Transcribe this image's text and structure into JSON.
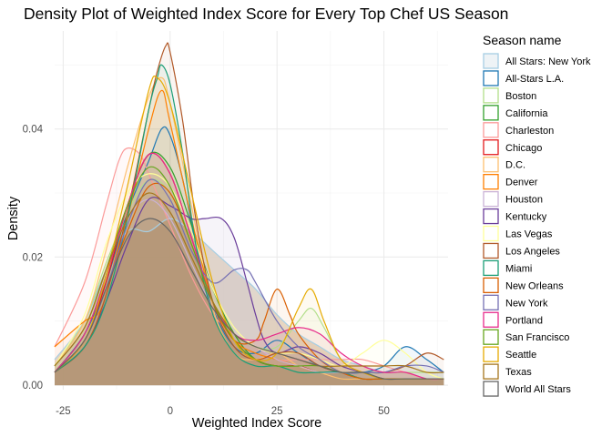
{
  "chart_data": {
    "type": "area",
    "title": "Density Plot of Weighted Index Score for Every Top Chef US Season",
    "xlabel": "Weighted Index Score",
    "ylabel": "Density",
    "xlim": [
      -27,
      65
    ],
    "ylim": [
      -0.0007,
      0.0553
    ],
    "x_ticks": [
      -25,
      0,
      25,
      50
    ],
    "x_tick_labels": [
      "-25",
      "0",
      "25",
      "50"
    ],
    "y_ticks": [
      0.0,
      0.02,
      0.04
    ],
    "y_tick_labels": [
      "0.00",
      "0.02",
      "0.04"
    ],
    "grid": true,
    "legend_position": "right",
    "legend_title": "Season name",
    "series": [
      {
        "name": "All Stars: New York",
        "color": "#a6cee3",
        "filled": true,
        "x": [
          -27,
          -20,
          -15,
          -10,
          -5,
          0,
          5,
          10,
          15,
          20,
          25,
          30,
          35,
          40,
          45,
          50,
          55,
          60,
          64
        ],
        "y": [
          0.004,
          0.01,
          0.018,
          0.024,
          0.024,
          0.026,
          0.024,
          0.021,
          0.018,
          0.015,
          0.011,
          0.008,
          0.006,
          0.004,
          0.003,
          0.002,
          0.002,
          0.001,
          0.001
        ]
      },
      {
        "name": "All-Stars L.A.",
        "color": "#1f78b4",
        "x": [
          -27,
          -20,
          -15,
          -10,
          -5,
          -2,
          0,
          3,
          6,
          10,
          15,
          20,
          25,
          30,
          35,
          40,
          45,
          50,
          55,
          60,
          64
        ],
        "y": [
          0.002,
          0.008,
          0.016,
          0.027,
          0.035,
          0.04,
          0.039,
          0.032,
          0.022,
          0.012,
          0.006,
          0.005,
          0.007,
          0.005,
          0.003,
          0.002,
          0.002,
          0.003,
          0.006,
          0.004,
          0.002
        ]
      },
      {
        "name": "Boston",
        "color": "#b2df8a",
        "x": [
          -27,
          -20,
          -15,
          -10,
          -5,
          0,
          5,
          10,
          15,
          20,
          25,
          30,
          33,
          36,
          40,
          45,
          50,
          55,
          60,
          64
        ],
        "y": [
          0.003,
          0.01,
          0.019,
          0.027,
          0.032,
          0.03,
          0.022,
          0.013,
          0.008,
          0.006,
          0.006,
          0.01,
          0.012,
          0.009,
          0.004,
          0.002,
          0.002,
          0.002,
          0.002,
          0.002
        ]
      },
      {
        "name": "California",
        "color": "#33a02c",
        "x": [
          -27,
          -20,
          -15,
          -10,
          -5,
          0,
          5,
          10,
          15,
          20,
          25,
          30,
          35,
          40,
          45,
          50,
          55,
          60,
          64
        ],
        "y": [
          0.002,
          0.008,
          0.017,
          0.028,
          0.036,
          0.034,
          0.025,
          0.015,
          0.008,
          0.004,
          0.003,
          0.003,
          0.002,
          0.002,
          0.001,
          0.001,
          0.001,
          0.001,
          0.001
        ]
      },
      {
        "name": "Charleston",
        "color": "#fb9a99",
        "x": [
          -27,
          -20,
          -15,
          -12,
          -10,
          -7,
          -5,
          0,
          5,
          10,
          15,
          20,
          25,
          30,
          35,
          40,
          45,
          50,
          55,
          60,
          64
        ],
        "y": [
          0.006,
          0.016,
          0.028,
          0.035,
          0.037,
          0.036,
          0.033,
          0.025,
          0.017,
          0.011,
          0.008,
          0.006,
          0.004,
          0.004,
          0.004,
          0.004,
          0.004,
          0.003,
          0.002,
          0.001,
          0.001
        ]
      },
      {
        "name": "Chicago",
        "color": "#e31a1c",
        "x": [
          -27,
          -20,
          -15,
          -10,
          -5,
          0,
          5,
          10,
          15,
          20,
          25,
          30,
          35,
          40,
          45,
          50,
          55,
          60,
          64
        ],
        "y": [
          0.002,
          0.007,
          0.016,
          0.028,
          0.036,
          0.033,
          0.023,
          0.013,
          0.007,
          0.004,
          0.003,
          0.003,
          0.002,
          0.002,
          0.001,
          0.001,
          0.001,
          0.001,
          0.001
        ]
      },
      {
        "name": "D.C.",
        "color": "#fdbf6f",
        "x": [
          -27,
          -20,
          -15,
          -10,
          -5,
          -2,
          0,
          5,
          10,
          15,
          20,
          25,
          30,
          35,
          40,
          45,
          50,
          55,
          60,
          64
        ],
        "y": [
          0.003,
          0.01,
          0.021,
          0.034,
          0.045,
          0.048,
          0.044,
          0.028,
          0.012,
          0.005,
          0.004,
          0.005,
          0.003,
          0.002,
          0.001,
          0.001,
          0.001,
          0.001,
          0.001,
          0.001
        ]
      },
      {
        "name": "Denver",
        "color": "#ff7f00",
        "x": [
          -27,
          -20,
          -17,
          -15,
          -12,
          -10,
          -5,
          -2,
          0,
          5,
          10,
          15,
          20,
          25,
          30,
          35,
          40,
          45,
          50,
          55,
          60,
          64
        ],
        "y": [
          0.006,
          0.01,
          0.011,
          0.014,
          0.022,
          0.026,
          0.04,
          0.046,
          0.041,
          0.026,
          0.013,
          0.007,
          0.005,
          0.004,
          0.003,
          0.002,
          0.002,
          0.001,
          0.001,
          0.001,
          0.001,
          0.001
        ]
      },
      {
        "name": "Houston",
        "color": "#cab2d6",
        "x": [
          -27,
          -20,
          -15,
          -10,
          -5,
          0,
          5,
          10,
          15,
          20,
          25,
          30,
          35,
          40,
          45,
          50,
          55,
          60,
          64
        ],
        "y": [
          0.003,
          0.009,
          0.018,
          0.026,
          0.029,
          0.026,
          0.019,
          0.012,
          0.008,
          0.006,
          0.004,
          0.003,
          0.002,
          0.002,
          0.002,
          0.001,
          0.001,
          0.001,
          0.001
        ]
      },
      {
        "name": "Kentucky",
        "color": "#6a3d9a",
        "x": [
          -27,
          -20,
          -15,
          -10,
          -5,
          0,
          5,
          8,
          12,
          15,
          18,
          20,
          22,
          25,
          30,
          35,
          40,
          45,
          50,
          55,
          60,
          64
        ],
        "y": [
          0.002,
          0.006,
          0.013,
          0.022,
          0.029,
          0.028,
          0.026,
          0.026,
          0.026,
          0.023,
          0.016,
          0.011,
          0.007,
          0.005,
          0.006,
          0.005,
          0.003,
          0.002,
          0.001,
          0.001,
          0.001,
          0.001
        ]
      },
      {
        "name": "Las Vegas",
        "color": "#ffff99",
        "x": [
          -27,
          -20,
          -15,
          -10,
          -5,
          0,
          5,
          10,
          15,
          20,
          25,
          30,
          35,
          40,
          45,
          50,
          55,
          60,
          64
        ],
        "y": [
          0.003,
          0.011,
          0.022,
          0.03,
          0.033,
          0.031,
          0.024,
          0.015,
          0.009,
          0.006,
          0.005,
          0.005,
          0.004,
          0.003,
          0.005,
          0.007,
          0.005,
          0.002,
          0.001
        ]
      },
      {
        "name": "Los Angeles",
        "color": "#b15928",
        "x": [
          -27,
          -20,
          -15,
          -10,
          -5,
          -3,
          -1,
          0,
          3,
          6,
          10,
          15,
          20,
          25,
          30,
          35,
          40,
          45,
          50,
          55,
          60,
          64
        ],
        "y": [
          0.002,
          0.006,
          0.014,
          0.027,
          0.043,
          0.049,
          0.053,
          0.052,
          0.041,
          0.026,
          0.013,
          0.006,
          0.004,
          0.005,
          0.005,
          0.003,
          0.002,
          0.002,
          0.002,
          0.003,
          0.005,
          0.004
        ]
      },
      {
        "name": "Miami",
        "color": "#1b9e77",
        "x": [
          -27,
          -20,
          -15,
          -10,
          -5,
          -3,
          -2,
          0,
          3,
          6,
          10,
          15,
          20,
          25,
          30,
          35,
          40,
          45,
          50,
          55,
          60,
          64
        ],
        "y": [
          0.002,
          0.006,
          0.013,
          0.026,
          0.043,
          0.048,
          0.05,
          0.047,
          0.036,
          0.022,
          0.011,
          0.005,
          0.003,
          0.003,
          0.002,
          0.002,
          0.002,
          0.001,
          0.001,
          0.001,
          0.001,
          0.001
        ]
      },
      {
        "name": "New Orleans",
        "color": "#d95f02",
        "x": [
          -27,
          -20,
          -15,
          -10,
          -5,
          0,
          5,
          10,
          15,
          20,
          22,
          25,
          28,
          30,
          35,
          40,
          45,
          50,
          55,
          60,
          64
        ],
        "y": [
          0.002,
          0.007,
          0.015,
          0.024,
          0.031,
          0.03,
          0.022,
          0.013,
          0.007,
          0.007,
          0.01,
          0.015,
          0.011,
          0.008,
          0.004,
          0.002,
          0.001,
          0.001,
          0.001,
          0.001,
          0.001
        ]
      },
      {
        "name": "New York",
        "color": "#7570b3",
        "x": [
          -27,
          -20,
          -15,
          -10,
          -5,
          0,
          5,
          10,
          15,
          18,
          20,
          25,
          30,
          35,
          40,
          45,
          50,
          55,
          60,
          64
        ],
        "y": [
          0.002,
          0.007,
          0.015,
          0.025,
          0.032,
          0.029,
          0.021,
          0.016,
          0.018,
          0.018,
          0.016,
          0.01,
          0.006,
          0.004,
          0.002,
          0.002,
          0.002,
          0.003,
          0.003,
          0.002
        ]
      },
      {
        "name": "Portland",
        "color": "#e7298a",
        "x": [
          -27,
          -20,
          -15,
          -10,
          -5,
          0,
          5,
          10,
          15,
          20,
          25,
          30,
          35,
          40,
          45,
          50,
          55,
          60,
          64
        ],
        "y": [
          0.002,
          0.008,
          0.017,
          0.028,
          0.036,
          0.033,
          0.023,
          0.013,
          0.008,
          0.007,
          0.008,
          0.009,
          0.008,
          0.005,
          0.003,
          0.002,
          0.002,
          0.001,
          0.001
        ]
      },
      {
        "name": "San Francisco",
        "color": "#66a61e",
        "x": [
          -27,
          -20,
          -15,
          -10,
          -5,
          0,
          5,
          10,
          15,
          20,
          25,
          30,
          35,
          40,
          45,
          50,
          55,
          60,
          64
        ],
        "y": [
          0.003,
          0.009,
          0.018,
          0.028,
          0.034,
          0.031,
          0.022,
          0.013,
          0.007,
          0.004,
          0.003,
          0.003,
          0.003,
          0.002,
          0.002,
          0.001,
          0.001,
          0.001,
          0.001
        ]
      },
      {
        "name": "Seattle",
        "color": "#e6ab02",
        "x": [
          -27,
          -20,
          -15,
          -10,
          -5,
          -3,
          0,
          5,
          10,
          15,
          20,
          25,
          30,
          33,
          36,
          40,
          45,
          50,
          55,
          60,
          64
        ],
        "y": [
          0.002,
          0.007,
          0.017,
          0.031,
          0.046,
          0.048,
          0.044,
          0.03,
          0.016,
          0.007,
          0.004,
          0.005,
          0.012,
          0.015,
          0.01,
          0.004,
          0.002,
          0.001,
          0.001,
          0.001,
          0.001
        ]
      },
      {
        "name": "Texas",
        "color": "#a6761d",
        "x": [
          -27,
          -20,
          -15,
          -10,
          -5,
          0,
          5,
          10,
          15,
          20,
          25,
          30,
          35,
          40,
          45,
          50,
          55,
          60,
          64
        ],
        "y": [
          0.003,
          0.009,
          0.018,
          0.026,
          0.03,
          0.027,
          0.02,
          0.013,
          0.008,
          0.006,
          0.005,
          0.004,
          0.003,
          0.003,
          0.003,
          0.003,
          0.003,
          0.002,
          0.002
        ]
      },
      {
        "name": "World All Stars",
        "color": "#666666",
        "x": [
          -27,
          -20,
          -15,
          -10,
          -5,
          0,
          5,
          10,
          15,
          20,
          25,
          30,
          35,
          40,
          45,
          50,
          55,
          60,
          64
        ],
        "y": [
          0.002,
          0.007,
          0.015,
          0.023,
          0.026,
          0.024,
          0.018,
          0.012,
          0.008,
          0.006,
          0.005,
          0.004,
          0.003,
          0.002,
          0.002,
          0.001,
          0.001,
          0.001,
          0.001
        ]
      }
    ]
  }
}
